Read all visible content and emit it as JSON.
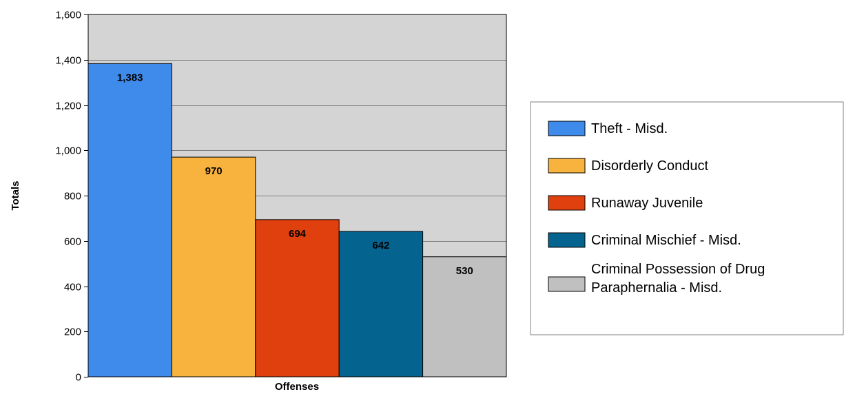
{
  "chart_data": {
    "type": "bar",
    "xlabel": "Offenses",
    "ylabel": "Totals",
    "ylim": [
      0,
      1600
    ],
    "yticks": [
      0,
      200,
      400,
      600,
      800,
      1000,
      1200,
      1400,
      1600
    ],
    "ytick_labels": [
      "0",
      "200",
      "400",
      "600",
      "800",
      "1,000",
      "1,200",
      "1,400",
      "1,600"
    ],
    "grid": true,
    "legend_position": "right",
    "series": [
      {
        "name": "Theft - Misd.",
        "value": 1383,
        "label": "1,383",
        "color": "#3f8bec"
      },
      {
        "name": "Disorderly Conduct",
        "value": 970,
        "label": "970",
        "color": "#f8b33f"
      },
      {
        "name": "Runaway Juvenile",
        "value": 694,
        "label": "694",
        "color": "#e0400e"
      },
      {
        "name": "Criminal Mischief - Misd.",
        "value": 642,
        "label": "642",
        "color": "#056390"
      },
      {
        "name": "Criminal Possession of Drug Paraphernalia - Misd.",
        "value": 530,
        "label": "530",
        "color": "#c0c0c0",
        "legend_lines": [
          "Criminal Possession of Drug",
          "Paraphernalia - Misd."
        ]
      }
    ],
    "plot_background": "#d4d4d4"
  }
}
